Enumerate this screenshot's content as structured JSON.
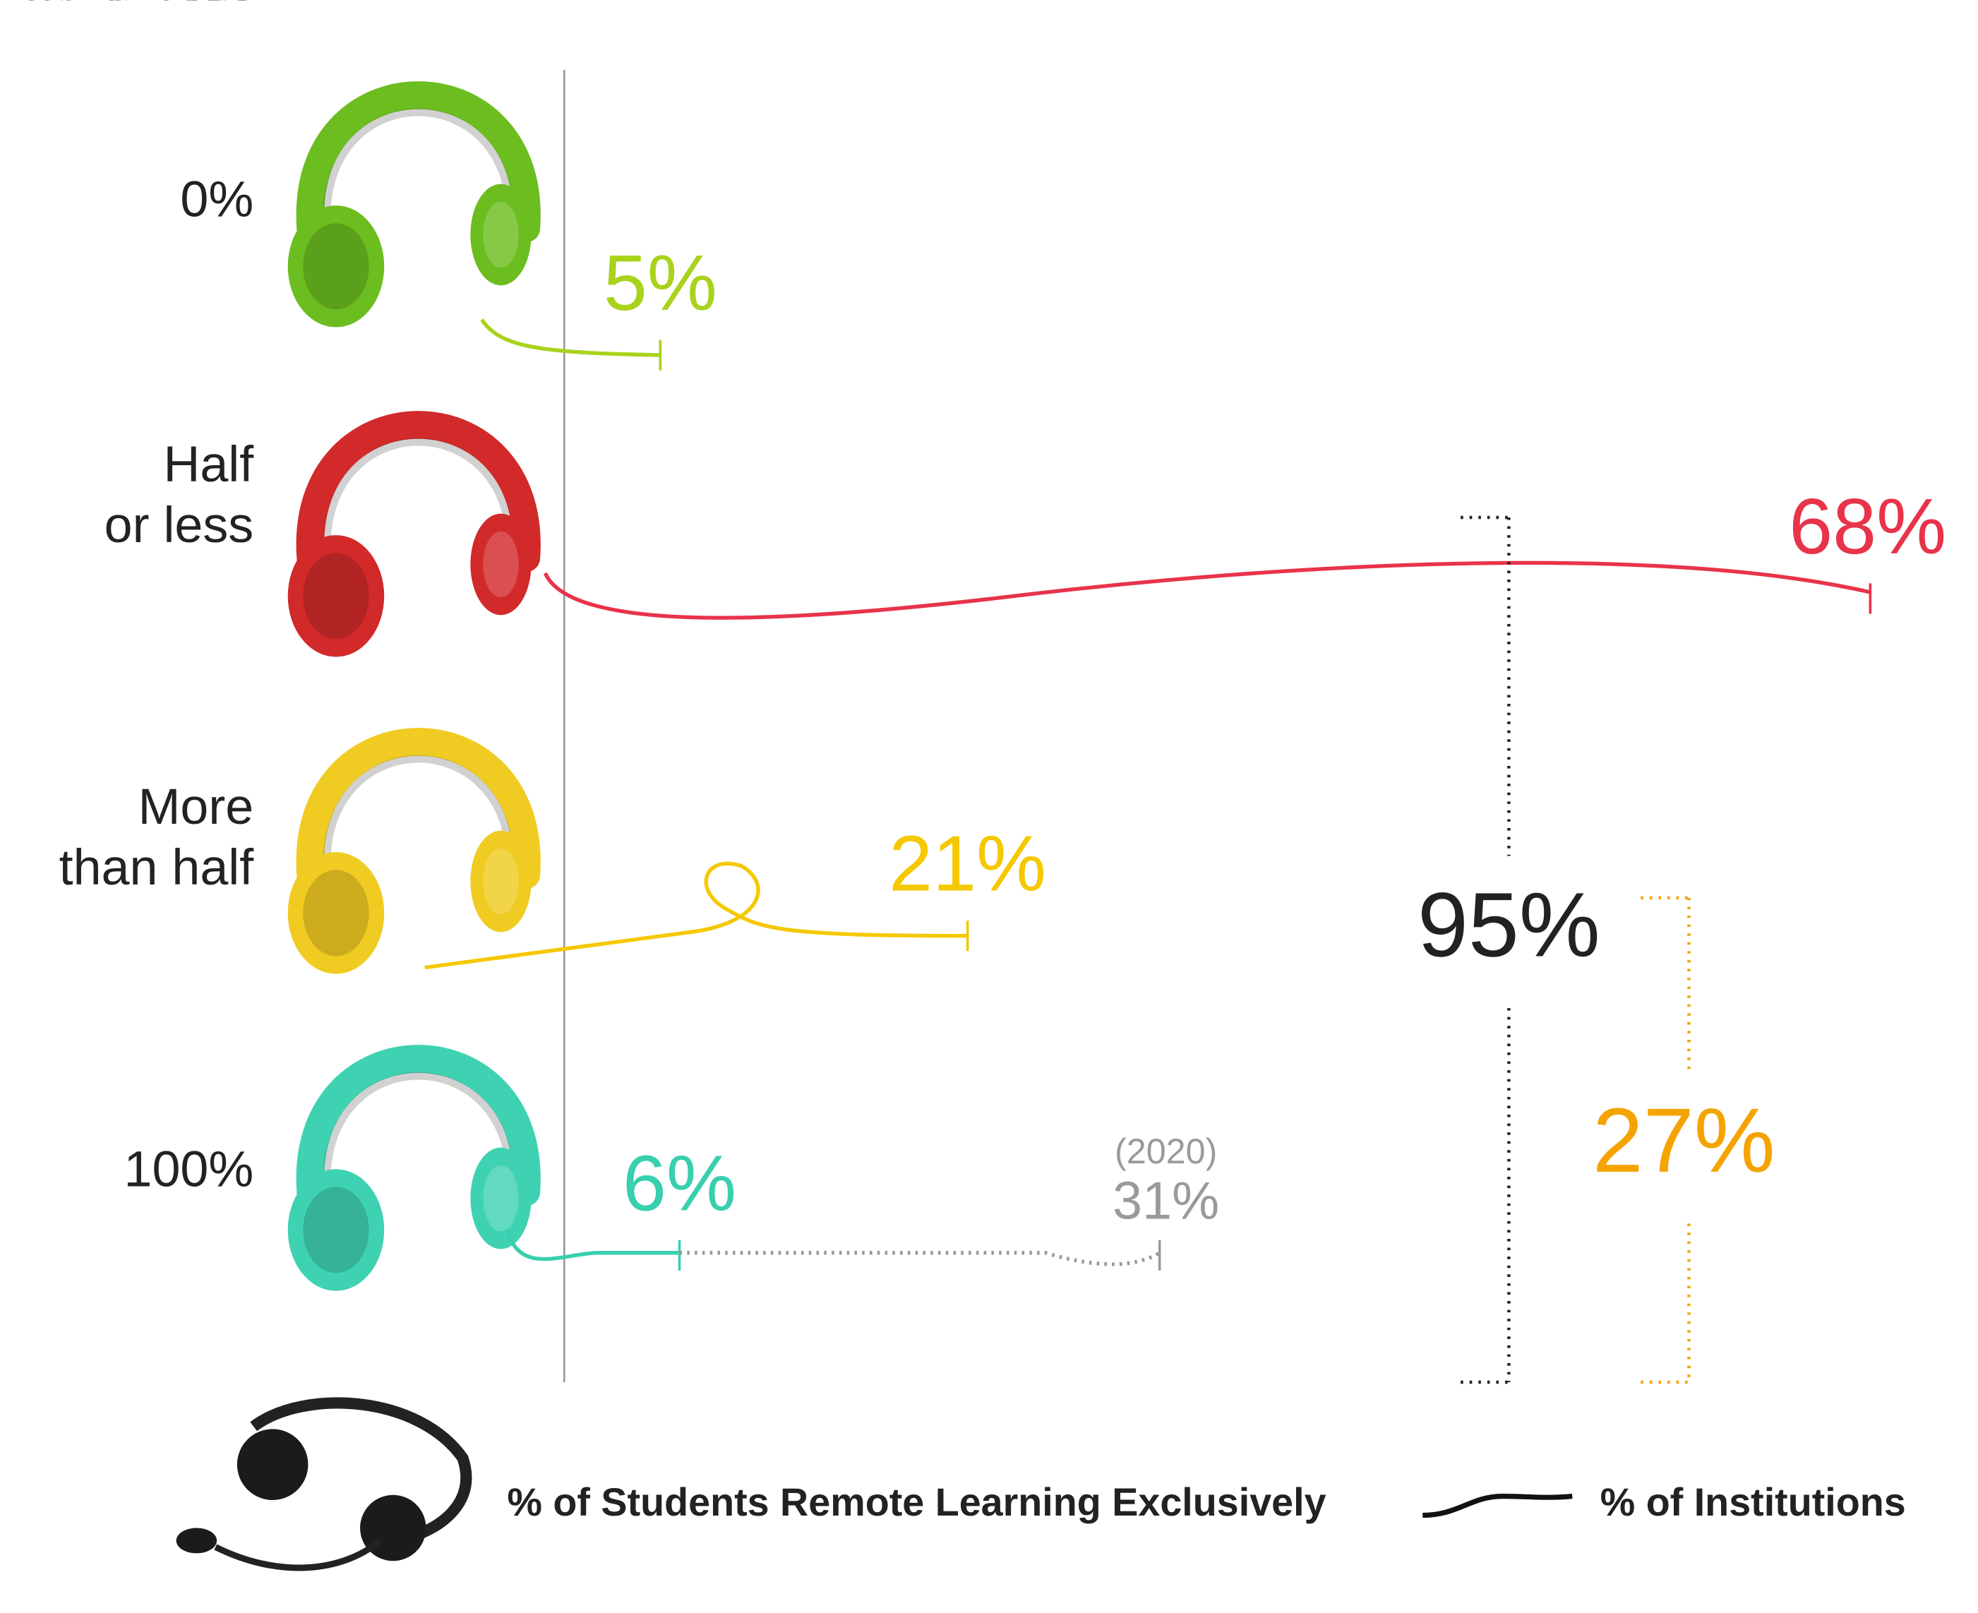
{
  "chart_data": {
    "type": "bar",
    "orientation": "horizontal",
    "categories": [
      "0%",
      "Half\nor less",
      "More\nthan half",
      "100%"
    ],
    "category_axis_label": "% of Students Remote Learning Exclusively",
    "series": [
      {
        "name": "% of Institutions",
        "color": "#111111",
        "colors": [
          "#a9d21c",
          "#e8334a",
          "#f5c800",
          "#38cfae"
        ],
        "values": [
          5,
          68,
          21,
          6
        ],
        "value_labels": [
          "5%",
          "68%",
          "21%",
          "6%"
        ]
      },
      {
        "name": "(2020)",
        "color": "#9a9a9a",
        "values": [
          null,
          null,
          null,
          31
        ],
        "value_labels": [
          null,
          null,
          null,
          "31%"
        ]
      }
    ],
    "annotations": [
      {
        "text": "95%",
        "color": "#222222"
      },
      {
        "text": "27%",
        "color": "#f5a300"
      }
    ]
  }
}
